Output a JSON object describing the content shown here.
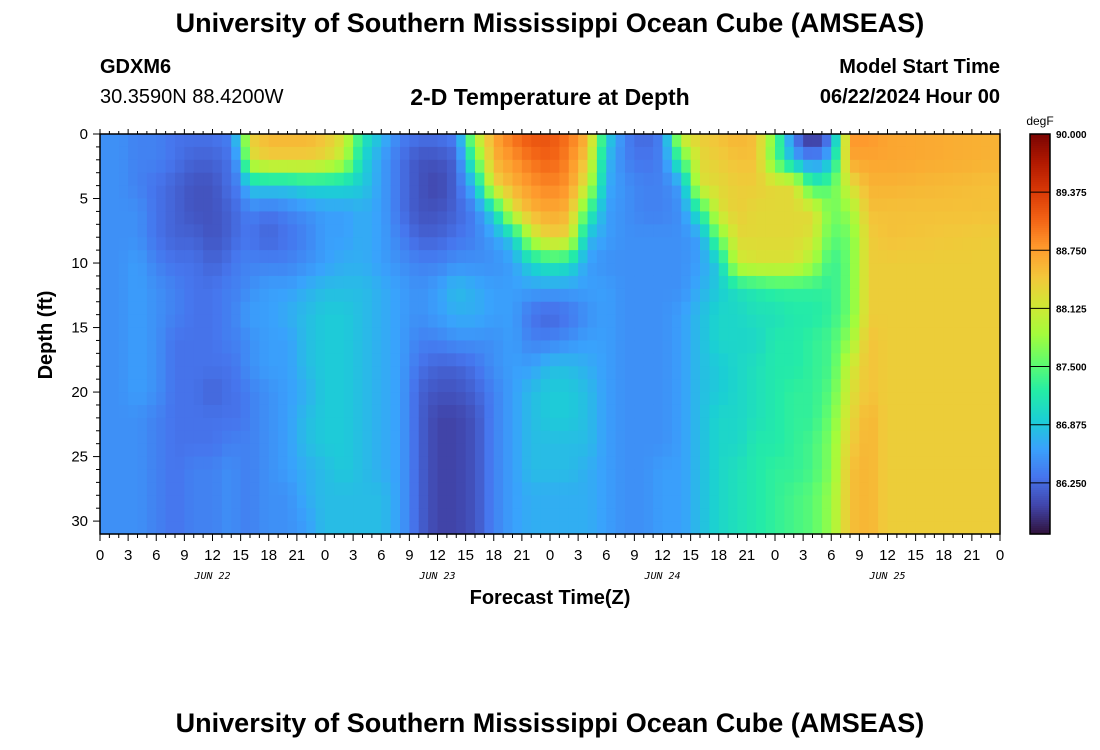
{
  "header": {
    "title": "University of Southern Mississippi Ocean Cube (AMSEAS)",
    "station_id": "GDXM6",
    "coordinates": "30.3590N  88.4200W",
    "model_start_label": "Model Start Time",
    "model_start_value": "06/22/2024 Hour 00"
  },
  "footer": {
    "title": "University of Southern Mississippi Ocean Cube (AMSEAS)"
  },
  "chart_data": {
    "type": "heatmap",
    "title": "2-D Temperature at Depth",
    "xlabel": "Forecast Time(Z)",
    "ylabel": "Depth (ft)",
    "x_unit": "forecast hour",
    "xlim": [
      0,
      96
    ],
    "ylim": [
      31,
      0
    ],
    "y_ticks": [
      0,
      5,
      10,
      15,
      20,
      25,
      30
    ],
    "x_tick_labels": [
      "0",
      "3",
      "6",
      "9",
      "12",
      "15",
      "18",
      "21",
      "0",
      "3",
      "6",
      "9",
      "12",
      "15",
      "18",
      "21",
      "0",
      "3",
      "6",
      "9",
      "12",
      "15",
      "18",
      "21",
      "0",
      "3",
      "6",
      "9",
      "12",
      "15",
      "18",
      "21",
      "0"
    ],
    "date_labels": [
      {
        "hour": 12,
        "label": "JUN 22"
      },
      {
        "hour": 36,
        "label": "JUN 23"
      },
      {
        "hour": 60,
        "label": "JUN 24"
      },
      {
        "hour": 84,
        "label": "JUN 25"
      }
    ],
    "colorbar": {
      "unit": "degF",
      "min": 85.7,
      "max": 90.0,
      "ticks": [
        "90.000",
        "89.375",
        "88.750",
        "88.125",
        "87.500",
        "86.875",
        "86.250"
      ],
      "colors": [
        "#30123b",
        "#4145ab",
        "#4675ed",
        "#39a2fc",
        "#1bcfd4",
        "#24eca6",
        "#61fc6c",
        "#a4fc3b",
        "#d1e834",
        "#f3c63a",
        "#fe9b2d",
        "#f36315",
        "#d93806",
        "#b11901",
        "#7a0402"
      ]
    },
    "depth_ft": [
      0,
      2,
      4,
      6,
      8,
      10,
      12,
      14,
      16,
      18,
      20,
      22,
      24,
      26,
      28,
      30,
      31
    ],
    "columns": [
      {
        "hour": 0,
        "values": [
          86.5,
          86.5,
          86.5,
          86.5,
          86.5,
          86.5,
          86.5,
          86.5,
          86.5,
          86.5,
          86.5,
          86.5,
          86.5,
          86.5,
          86.5,
          86.5,
          86.5
        ]
      },
      {
        "hour": 2,
        "values": [
          86.5,
          86.5,
          86.5,
          86.5,
          86.5,
          86.5,
          86.5,
          86.5,
          86.5,
          86.5,
          86.5,
          86.5,
          86.5,
          86.5,
          86.5,
          86.5,
          86.5
        ]
      },
      {
        "hour": 4,
        "values": [
          86.4,
          86.4,
          86.4,
          86.5,
          86.5,
          86.6,
          86.6,
          86.6,
          86.6,
          86.6,
          86.6,
          86.5,
          86.5,
          86.5,
          86.5,
          86.5,
          86.5
        ]
      },
      {
        "hour": 6,
        "values": [
          86.4,
          86.4,
          86.3,
          86.3,
          86.3,
          86.4,
          86.5,
          86.5,
          86.5,
          86.5,
          86.5,
          86.4,
          86.4,
          86.4,
          86.4,
          86.4,
          86.4
        ]
      },
      {
        "hour": 8,
        "values": [
          86.3,
          86.3,
          86.2,
          86.2,
          86.2,
          86.3,
          86.4,
          86.4,
          86.3,
          86.3,
          86.3,
          86.3,
          86.3,
          86.3,
          86.3,
          86.3,
          86.3
        ]
      },
      {
        "hour": 10,
        "values": [
          86.3,
          86.2,
          86.1,
          86.1,
          86.2,
          86.3,
          86.3,
          86.3,
          86.3,
          86.3,
          86.3,
          86.3,
          86.3,
          86.4,
          86.4,
          86.4,
          86.4
        ]
      },
      {
        "hour": 12,
        "values": [
          86.3,
          86.2,
          86.1,
          86.1,
          86.1,
          86.2,
          86.3,
          86.3,
          86.3,
          86.3,
          86.2,
          86.3,
          86.3,
          86.4,
          86.4,
          86.4,
          86.4
        ]
      },
      {
        "hour": 14,
        "values": [
          86.4,
          86.3,
          86.3,
          86.2,
          86.2,
          86.3,
          86.4,
          86.4,
          86.4,
          86.3,
          86.3,
          86.3,
          86.4,
          86.5,
          86.5,
          86.5,
          86.5
        ]
      },
      {
        "hour": 15,
        "values": [
          87.2,
          86.8,
          86.4,
          86.3,
          86.3,
          86.4,
          86.4,
          86.5,
          86.4,
          86.4,
          86.3,
          86.3,
          86.4,
          86.4,
          86.4,
          86.4,
          86.4
        ]
      },
      {
        "hour": 16,
        "values": [
          88.4,
          88.2,
          86.9,
          86.4,
          86.3,
          86.4,
          86.5,
          86.6,
          86.5,
          86.5,
          86.4,
          86.4,
          86.4,
          86.4,
          86.4,
          86.4,
          86.4
        ]
      },
      {
        "hour": 18,
        "values": [
          88.6,
          88.4,
          86.9,
          86.3,
          86.2,
          86.4,
          86.6,
          86.6,
          86.6,
          86.6,
          86.5,
          86.5,
          86.5,
          86.5,
          86.5,
          86.5,
          86.5
        ]
      },
      {
        "hour": 20,
        "values": [
          88.6,
          88.4,
          86.9,
          86.4,
          86.3,
          86.4,
          86.6,
          86.7,
          86.6,
          86.6,
          86.6,
          86.6,
          86.6,
          86.6,
          86.5,
          86.5,
          86.5
        ]
      },
      {
        "hour": 22,
        "values": [
          88.6,
          88.4,
          87.0,
          86.5,
          86.4,
          86.5,
          86.7,
          86.8,
          86.8,
          86.8,
          86.7,
          86.8,
          86.8,
          86.7,
          86.7,
          86.6,
          86.6
        ]
      },
      {
        "hour": 24,
        "values": [
          88.5,
          88.3,
          87.0,
          86.6,
          86.6,
          86.6,
          86.8,
          86.9,
          86.9,
          86.9,
          86.9,
          86.9,
          86.9,
          86.8,
          86.8,
          86.8,
          86.8
        ]
      },
      {
        "hour": 26,
        "values": [
          88.2,
          88.0,
          87.0,
          86.6,
          86.6,
          86.7,
          86.8,
          86.9,
          86.9,
          86.9,
          86.9,
          86.9,
          86.9,
          86.9,
          86.8,
          86.8,
          86.8
        ]
      },
      {
        "hour": 28,
        "values": [
          87.2,
          87.0,
          86.9,
          86.7,
          86.7,
          86.7,
          86.8,
          86.8,
          86.8,
          86.8,
          86.8,
          86.8,
          86.8,
          86.8,
          86.8,
          86.8,
          86.8
        ]
      },
      {
        "hour": 30,
        "values": [
          86.8,
          86.6,
          86.6,
          86.6,
          86.6,
          86.6,
          86.7,
          86.7,
          86.7,
          86.7,
          86.7,
          86.7,
          86.7,
          86.7,
          86.8,
          86.8,
          86.8
        ]
      },
      {
        "hour": 32,
        "values": [
          86.4,
          86.3,
          86.3,
          86.3,
          86.4,
          86.5,
          86.6,
          86.6,
          86.6,
          86.6,
          86.6,
          86.6,
          86.6,
          86.6,
          86.6,
          86.6,
          86.6
        ]
      },
      {
        "hour": 34,
        "values": [
          86.3,
          86.1,
          86.1,
          86.1,
          86.2,
          86.4,
          86.5,
          86.5,
          86.4,
          86.3,
          86.2,
          86.2,
          86.2,
          86.2,
          86.2,
          86.2,
          86.2
        ]
      },
      {
        "hour": 36,
        "values": [
          86.3,
          86.1,
          86.0,
          86.1,
          86.2,
          86.4,
          86.6,
          86.6,
          86.4,
          86.2,
          86.1,
          86.0,
          86.0,
          86.0,
          86.0,
          86.0,
          86.0
        ]
      },
      {
        "hour": 38,
        "values": [
          86.4,
          86.2,
          86.2,
          86.2,
          86.3,
          86.5,
          86.8,
          86.7,
          86.5,
          86.2,
          86.1,
          86.0,
          86.0,
          86.0,
          86.0,
          86.0,
          86.0
        ]
      },
      {
        "hour": 40,
        "values": [
          88.0,
          87.5,
          86.8,
          86.4,
          86.4,
          86.5,
          86.7,
          86.7,
          86.5,
          86.3,
          86.2,
          86.1,
          86.1,
          86.1,
          86.1,
          86.1,
          86.1
        ]
      },
      {
        "hour": 42,
        "values": [
          88.7,
          88.6,
          88.3,
          87.0,
          86.6,
          86.5,
          86.6,
          86.6,
          86.5,
          86.5,
          86.4,
          86.4,
          86.4,
          86.4,
          86.4,
          86.4,
          86.4
        ]
      },
      {
        "hour": 44,
        "values": [
          89.0,
          88.8,
          88.6,
          88.2,
          86.9,
          86.6,
          86.6,
          86.6,
          86.6,
          86.6,
          86.6,
          86.6,
          86.6,
          86.6,
          86.6,
          86.6,
          86.6
        ]
      },
      {
        "hour": 46,
        "values": [
          89.2,
          89.0,
          88.8,
          88.6,
          88.0,
          87.0,
          86.6,
          86.3,
          86.4,
          86.6,
          86.8,
          86.8,
          86.8,
          86.8,
          86.7,
          86.7,
          86.7
        ]
      },
      {
        "hour": 48,
        "values": [
          89.2,
          89.1,
          88.9,
          88.7,
          88.4,
          87.2,
          86.6,
          86.2,
          86.4,
          86.8,
          86.9,
          86.9,
          86.8,
          86.8,
          86.7,
          86.7,
          86.7
        ]
      },
      {
        "hour": 50,
        "values": [
          89.0,
          88.9,
          88.8,
          88.6,
          88.3,
          87.1,
          86.6,
          86.3,
          86.5,
          86.8,
          86.9,
          86.9,
          86.8,
          86.8,
          86.7,
          86.7,
          86.7
        ]
      },
      {
        "hour": 52,
        "values": [
          88.6,
          88.4,
          88.1,
          87.4,
          86.8,
          86.6,
          86.6,
          86.5,
          86.6,
          86.7,
          86.8,
          86.8,
          86.8,
          86.7,
          86.7,
          86.7,
          86.7
        ]
      },
      {
        "hour": 54,
        "values": [
          87.0,
          86.8,
          86.7,
          86.6,
          86.6,
          86.5,
          86.6,
          86.6,
          86.6,
          86.6,
          86.6,
          86.6,
          86.6,
          86.6,
          86.6,
          86.6,
          86.6
        ]
      },
      {
        "hour": 56,
        "values": [
          86.4,
          86.4,
          86.5,
          86.5,
          86.5,
          86.5,
          86.5,
          86.5,
          86.5,
          86.5,
          86.5,
          86.5,
          86.5,
          86.5,
          86.5,
          86.5,
          86.5
        ]
      },
      {
        "hour": 58,
        "values": [
          86.2,
          86.3,
          86.4,
          86.4,
          86.5,
          86.5,
          86.5,
          86.5,
          86.5,
          86.5,
          86.5,
          86.5,
          86.5,
          86.5,
          86.5,
          86.5,
          86.5
        ]
      },
      {
        "hour": 60,
        "values": [
          86.4,
          86.4,
          86.4,
          86.4,
          86.5,
          86.5,
          86.5,
          86.5,
          86.5,
          86.5,
          86.5,
          86.5,
          86.5,
          86.6,
          86.6,
          86.6,
          86.6
        ]
      },
      {
        "hour": 62,
        "values": [
          88.2,
          87.4,
          86.6,
          86.5,
          86.5,
          86.5,
          86.5,
          86.6,
          86.6,
          86.6,
          86.6,
          86.6,
          86.6,
          86.6,
          86.6,
          86.6,
          86.6
        ]
      },
      {
        "hour": 64,
        "values": [
          88.4,
          88.3,
          88.2,
          87.2,
          86.6,
          86.6,
          86.7,
          86.8,
          86.8,
          86.8,
          86.8,
          86.8,
          86.8,
          86.8,
          86.8,
          86.8,
          86.8
        ]
      },
      {
        "hour": 66,
        "values": [
          88.5,
          88.4,
          88.3,
          88.2,
          87.6,
          86.9,
          86.9,
          87.0,
          87.0,
          86.9,
          86.9,
          87.0,
          87.0,
          87.0,
          87.0,
          87.0,
          87.0
        ]
      },
      {
        "hour": 68,
        "values": [
          88.6,
          88.5,
          88.4,
          88.4,
          88.3,
          88.1,
          87.1,
          87.0,
          87.0,
          87.0,
          87.0,
          87.0,
          87.0,
          87.1,
          87.1,
          87.1,
          87.1
        ]
      },
      {
        "hour": 70,
        "values": [
          88.5,
          88.5,
          88.4,
          88.3,
          88.3,
          88.2,
          87.2,
          87.1,
          87.0,
          87.1,
          87.1,
          87.1,
          87.2,
          87.2,
          87.2,
          87.2,
          87.2
        ]
      },
      {
        "hour": 72,
        "values": [
          87.6,
          87.5,
          88.3,
          88.3,
          88.3,
          88.2,
          87.3,
          87.1,
          87.2,
          87.2,
          87.2,
          87.2,
          87.2,
          87.3,
          87.3,
          87.3,
          87.3
        ]
      },
      {
        "hour": 74,
        "values": [
          86.3,
          86.7,
          88.3,
          88.3,
          88.3,
          88.2,
          87.3,
          87.2,
          87.2,
          87.2,
          87.3,
          87.3,
          87.3,
          87.3,
          87.4,
          87.4,
          87.4
        ]
      },
      {
        "hour": 76,
        "values": [
          85.7,
          86.4,
          87.3,
          88.3,
          88.2,
          87.9,
          87.3,
          87.2,
          87.3,
          87.3,
          87.3,
          87.3,
          87.4,
          87.4,
          87.5,
          87.5,
          87.5
        ]
      },
      {
        "hour": 78,
        "values": [
          86.3,
          86.8,
          87.5,
          87.6,
          87.5,
          87.3,
          87.3,
          87.3,
          87.4,
          87.4,
          87.5,
          87.6,
          87.7,
          87.7,
          87.8,
          87.8,
          87.8
        ]
      },
      {
        "hour": 80,
        "values": [
          88.8,
          88.7,
          88.2,
          87.8,
          87.6,
          87.6,
          87.6,
          87.6,
          87.8,
          88.1,
          88.2,
          88.3,
          88.4,
          88.5,
          88.5,
          88.5,
          88.5
        ]
      },
      {
        "hour": 82,
        "values": [
          88.8,
          88.7,
          88.6,
          88.5,
          88.4,
          88.4,
          88.4,
          88.4,
          88.5,
          88.5,
          88.5,
          88.6,
          88.6,
          88.6,
          88.6,
          88.6,
          88.6
        ]
      },
      {
        "hour": 84,
        "values": [
          88.7,
          88.7,
          88.6,
          88.5,
          88.5,
          88.4,
          88.4,
          88.4,
          88.4,
          88.4,
          88.4,
          88.4,
          88.4,
          88.4,
          88.4,
          88.4,
          88.4
        ]
      },
      {
        "hour": 96,
        "values": [
          88.6,
          88.6,
          88.5,
          88.5,
          88.4,
          88.4,
          88.4,
          88.4,
          88.4,
          88.4,
          88.4,
          88.4,
          88.4,
          88.4,
          88.4,
          88.4,
          88.4
        ]
      }
    ]
  }
}
